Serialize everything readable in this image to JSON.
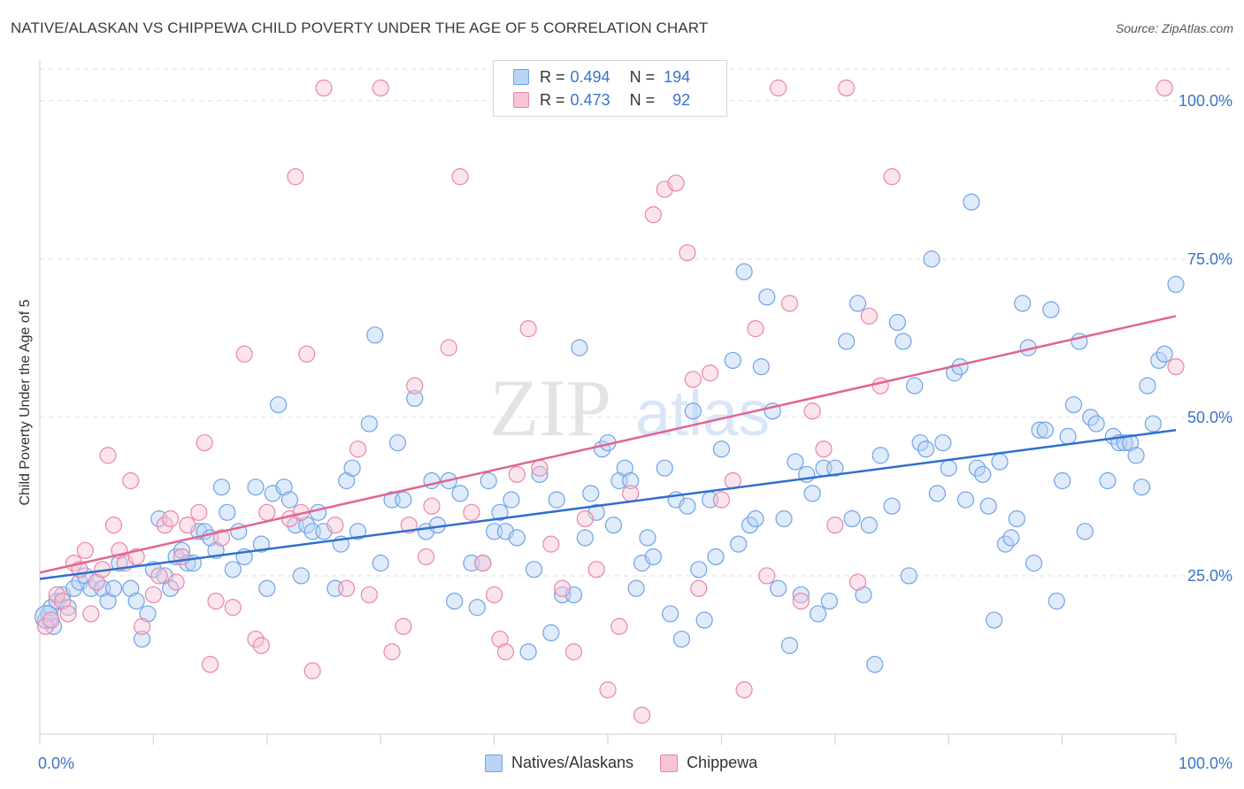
{
  "title": "NATIVE/ALASKAN VS CHIPPEWA CHILD POVERTY UNDER THE AGE OF 5 CORRELATION CHART",
  "source": "Source: ZipAtlas.com",
  "watermark": {
    "zip": "ZIP",
    "atlas": "atlas"
  },
  "legend": {
    "r_label": "R =",
    "n_label": "N =",
    "rows": [
      {
        "r": "0.494",
        "n": "194",
        "color": "#6fa3e6",
        "fill": "#b9d3f5"
      },
      {
        "r": "0.473",
        "n": "92",
        "color": "#e986a6",
        "fill": "#f8c4d4"
      }
    ]
  },
  "bottom_legend": [
    "Natives/Alaskans",
    "Chippewa"
  ],
  "chart_data": {
    "type": "scatter",
    "title": "NATIVE/ALASKAN VS CHIPPEWA CHILD POVERTY UNDER THE AGE OF 5 CORRELATION CHART",
    "xlabel": "",
    "ylabel": "Child Poverty Under the Age of 5",
    "xlim": [
      0,
      100
    ],
    "ylim": [
      0,
      105
    ],
    "x_tick_labels": [
      "0.0%",
      "100.0%"
    ],
    "y_tick_labels": [
      "25.0%",
      "50.0%",
      "75.0%",
      "100.0%"
    ],
    "y_ticks": [
      25,
      50,
      75,
      100
    ],
    "grid": true,
    "legend_position": "top-center",
    "series": [
      {
        "name": "Natives/Alaskans",
        "color": "#6fa3e6",
        "fill": "#b9d3f5",
        "line_color": "#2f6fd0",
        "trend": {
          "x": [
            0,
            100
          ],
          "y": [
            24.5,
            48.0
          ]
        },
        "points": [
          [
            0.5,
            18
          ],
          [
            0.8,
            19
          ],
          [
            1,
            20
          ],
          [
            1.2,
            17
          ],
          [
            1.5,
            21
          ],
          [
            2,
            22
          ],
          [
            2.5,
            20
          ],
          [
            3,
            23
          ],
          [
            3.5,
            24
          ],
          [
            4,
            25
          ],
          [
            4.5,
            23
          ],
          [
            5,
            24
          ],
          [
            5.5,
            23
          ],
          [
            6,
            21
          ],
          [
            6.5,
            23
          ],
          [
            7,
            27
          ],
          [
            8,
            23
          ],
          [
            8.5,
            21
          ],
          [
            9,
            15
          ],
          [
            9.5,
            19
          ],
          [
            10,
            26
          ],
          [
            10.5,
            34
          ],
          [
            11,
            25
          ],
          [
            11.5,
            23
          ],
          [
            12,
            28
          ],
          [
            12.5,
            29
          ],
          [
            13,
            27
          ],
          [
            13.5,
            27
          ],
          [
            14,
            32
          ],
          [
            14.5,
            32
          ],
          [
            15,
            31
          ],
          [
            15.5,
            29
          ],
          [
            16,
            39
          ],
          [
            16.5,
            35
          ],
          [
            17,
            26
          ],
          [
            17.5,
            32
          ],
          [
            18,
            28
          ],
          [
            19,
            39
          ],
          [
            19.5,
            30
          ],
          [
            20,
            23
          ],
          [
            20.5,
            38
          ],
          [
            21,
            52
          ],
          [
            21.5,
            39
          ],
          [
            22,
            37
          ],
          [
            22.5,
            33
          ],
          [
            23,
            25
          ],
          [
            23.5,
            33
          ],
          [
            24,
            32
          ],
          [
            24.5,
            35
          ],
          [
            25,
            32
          ],
          [
            26,
            23
          ],
          [
            26.5,
            30
          ],
          [
            27,
            40
          ],
          [
            27.5,
            42
          ],
          [
            28,
            32
          ],
          [
            29,
            49
          ],
          [
            29.5,
            63
          ],
          [
            30,
            27
          ],
          [
            31,
            37
          ],
          [
            31.5,
            46
          ],
          [
            32,
            37
          ],
          [
            33,
            53
          ],
          [
            34,
            32
          ],
          [
            34.5,
            40
          ],
          [
            35,
            33
          ],
          [
            36,
            40
          ],
          [
            36.5,
            21
          ],
          [
            37,
            38
          ],
          [
            38,
            27
          ],
          [
            38.5,
            20
          ],
          [
            39,
            27
          ],
          [
            39.5,
            40
          ],
          [
            40,
            32
          ],
          [
            40.5,
            35
          ],
          [
            41,
            32
          ],
          [
            41.5,
            37
          ],
          [
            42,
            31
          ],
          [
            43,
            13
          ],
          [
            43.5,
            26
          ],
          [
            44,
            41
          ],
          [
            45,
            16
          ],
          [
            45.5,
            37
          ],
          [
            46,
            22
          ],
          [
            47,
            22
          ],
          [
            47.5,
            61
          ],
          [
            48,
            31
          ],
          [
            48.5,
            38
          ],
          [
            49,
            35
          ],
          [
            49.5,
            45
          ],
          [
            50,
            46
          ],
          [
            50.5,
            33
          ],
          [
            51,
            40
          ],
          [
            51.5,
            42
          ],
          [
            52,
            40
          ],
          [
            52.5,
            23
          ],
          [
            53,
            27
          ],
          [
            53.5,
            31
          ],
          [
            54,
            28
          ],
          [
            55,
            42
          ],
          [
            55.5,
            19
          ],
          [
            56,
            37
          ],
          [
            56.5,
            15
          ],
          [
            57,
            36
          ],
          [
            57.5,
            51
          ],
          [
            58,
            26
          ],
          [
            58.5,
            18
          ],
          [
            59,
            37
          ],
          [
            59.5,
            28
          ],
          [
            60,
            45
          ],
          [
            61,
            59
          ],
          [
            61.5,
            30
          ],
          [
            62,
            73
          ],
          [
            62.5,
            33
          ],
          [
            63,
            34
          ],
          [
            63.5,
            58
          ],
          [
            64,
            69
          ],
          [
            64.5,
            51
          ],
          [
            65,
            23
          ],
          [
            65.5,
            34
          ],
          [
            66,
            14
          ],
          [
            66.5,
            43
          ],
          [
            67,
            22
          ],
          [
            67.5,
            41
          ],
          [
            68,
            38
          ],
          [
            68.5,
            19
          ],
          [
            69,
            42
          ],
          [
            69.5,
            21
          ],
          [
            70,
            42
          ],
          [
            71,
            62
          ],
          [
            71.5,
            34
          ],
          [
            72,
            68
          ],
          [
            72.5,
            22
          ],
          [
            73,
            33
          ],
          [
            73.5,
            11
          ],
          [
            74,
            44
          ],
          [
            75,
            36
          ],
          [
            75.5,
            65
          ],
          [
            76,
            62
          ],
          [
            76.5,
            25
          ],
          [
            77,
            55
          ],
          [
            77.5,
            46
          ],
          [
            78,
            45
          ],
          [
            78.5,
            75
          ],
          [
            79,
            38
          ],
          [
            79.5,
            46
          ],
          [
            80,
            42
          ],
          [
            80.5,
            57
          ],
          [
            81,
            58
          ],
          [
            81.5,
            37
          ],
          [
            82,
            84
          ],
          [
            82.5,
            42
          ],
          [
            83,
            41
          ],
          [
            83.5,
            36
          ],
          [
            84,
            18
          ],
          [
            84.5,
            43
          ],
          [
            85,
            30
          ],
          [
            85.5,
            31
          ],
          [
            86,
            34
          ],
          [
            86.5,
            68
          ],
          [
            87,
            61
          ],
          [
            87.5,
            27
          ],
          [
            88,
            48
          ],
          [
            88.5,
            48
          ],
          [
            89,
            67
          ],
          [
            89.5,
            21
          ],
          [
            90,
            40
          ],
          [
            90.5,
            47
          ],
          [
            91,
            52
          ],
          [
            91.5,
            62
          ],
          [
            92,
            32
          ],
          [
            92.5,
            50
          ],
          [
            93,
            49
          ],
          [
            94,
            40
          ],
          [
            94.5,
            47
          ],
          [
            95,
            46
          ],
          [
            95.5,
            46
          ],
          [
            96,
            46
          ],
          [
            96.5,
            44
          ],
          [
            97,
            39
          ],
          [
            97.5,
            55
          ],
          [
            98,
            49
          ],
          [
            98.5,
            59
          ],
          [
            99,
            60
          ],
          [
            100,
            71
          ]
        ]
      },
      {
        "name": "Chippewa",
        "color": "#e986a6",
        "fill": "#f8c4d4",
        "line_color": "#e06590",
        "trend": {
          "x": [
            0,
            100
          ],
          "y": [
            25.5,
            66.0
          ]
        },
        "points": [
          [
            0.5,
            17
          ],
          [
            1,
            18
          ],
          [
            1.5,
            22
          ],
          [
            2,
            21
          ],
          [
            2.5,
            19
          ],
          [
            3,
            27
          ],
          [
            3.5,
            26
          ],
          [
            4,
            29
          ],
          [
            4.5,
            19
          ],
          [
            5,
            24
          ],
          [
            5.5,
            26
          ],
          [
            6,
            44
          ],
          [
            6.5,
            33
          ],
          [
            7,
            29
          ],
          [
            7.5,
            27
          ],
          [
            8,
            40
          ],
          [
            8.5,
            28
          ],
          [
            9,
            17
          ],
          [
            10,
            22
          ],
          [
            10.5,
            25
          ],
          [
            11,
            33
          ],
          [
            11.5,
            34
          ],
          [
            12,
            24
          ],
          [
            12.5,
            28
          ],
          [
            13,
            33
          ],
          [
            14,
            35
          ],
          [
            14.5,
            46
          ],
          [
            15,
            11
          ],
          [
            15.5,
            21
          ],
          [
            16,
            31
          ],
          [
            17,
            20
          ],
          [
            18,
            60
          ],
          [
            19,
            15
          ],
          [
            19.5,
            14
          ],
          [
            20,
            35
          ],
          [
            22,
            34
          ],
          [
            22.5,
            88
          ],
          [
            23,
            35
          ],
          [
            23.5,
            60
          ],
          [
            24,
            10
          ],
          [
            25,
            102
          ],
          [
            26,
            33
          ],
          [
            27,
            23
          ],
          [
            28,
            45
          ],
          [
            29,
            22
          ],
          [
            30,
            102
          ],
          [
            31,
            13
          ],
          [
            32,
            17
          ],
          [
            32.5,
            33
          ],
          [
            33,
            55
          ],
          [
            34,
            28
          ],
          [
            34.5,
            36
          ],
          [
            36,
            61
          ],
          [
            37,
            88
          ],
          [
            38,
            35
          ],
          [
            39,
            27
          ],
          [
            40,
            22
          ],
          [
            40.5,
            15
          ],
          [
            41,
            13
          ],
          [
            42,
            41
          ],
          [
            43,
            64
          ],
          [
            44,
            42
          ],
          [
            45,
            30
          ],
          [
            46,
            23
          ],
          [
            47,
            13
          ],
          [
            48,
            34
          ],
          [
            49,
            26
          ],
          [
            50,
            7
          ],
          [
            51,
            17
          ],
          [
            52,
            38
          ],
          [
            53,
            3
          ],
          [
            54,
            82
          ],
          [
            55,
            86
          ],
          [
            56,
            87
          ],
          [
            57,
            76
          ],
          [
            57.5,
            56
          ],
          [
            58,
            23
          ],
          [
            59,
            57
          ],
          [
            60,
            37
          ],
          [
            61,
            40
          ],
          [
            62,
            7
          ],
          [
            63,
            64
          ],
          [
            64,
            25
          ],
          [
            65,
            102
          ],
          [
            66,
            68
          ],
          [
            67,
            21
          ],
          [
            68,
            51
          ],
          [
            69,
            45
          ],
          [
            70,
            33
          ],
          [
            71,
            102
          ],
          [
            72,
            24
          ],
          [
            73,
            66
          ],
          [
            74,
            55
          ],
          [
            75,
            88
          ],
          [
            99,
            102
          ],
          [
            100,
            58
          ]
        ]
      }
    ]
  }
}
